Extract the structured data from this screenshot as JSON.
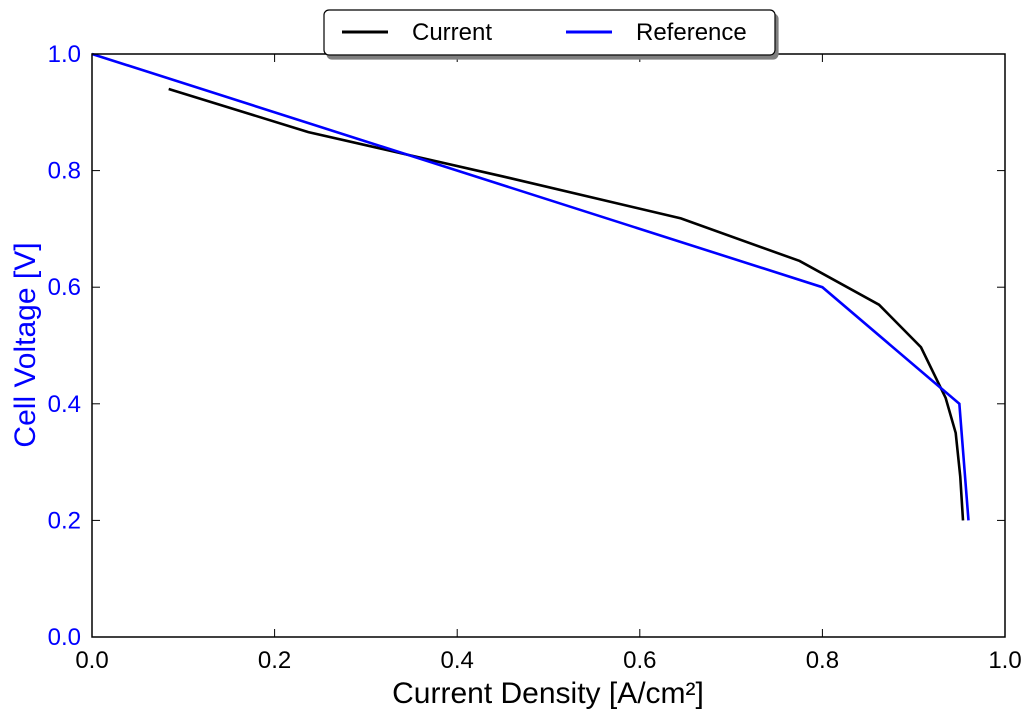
{
  "chart_data": {
    "type": "line",
    "title": "",
    "xlabel": "Current Density [A/cm²]",
    "ylabel": "Cell Voltage [V]",
    "xlim": [
      0.0,
      1.0
    ],
    "ylim": [
      0.0,
      1.0
    ],
    "x_ticks": [
      "0.0",
      "0.2",
      "0.4",
      "0.6",
      "0.8",
      "1.0"
    ],
    "y_ticks": [
      "0.0",
      "0.2",
      "0.4",
      "0.6",
      "0.8",
      "1.0"
    ],
    "grid": false,
    "legend_position": "top-center",
    "series": [
      {
        "name": "Current",
        "color": "#000000",
        "points": [
          [
            0.084,
            0.94
          ],
          [
            0.237,
            0.866
          ],
          [
            0.45,
            0.79
          ],
          [
            0.645,
            0.718
          ],
          [
            0.775,
            0.645
          ],
          [
            0.862,
            0.57
          ],
          [
            0.908,
            0.497
          ],
          [
            0.935,
            0.41
          ],
          [
            0.946,
            0.35
          ],
          [
            0.951,
            0.275
          ],
          [
            0.954,
            0.2
          ]
        ]
      },
      {
        "name": "Reference",
        "color": "#0000ff",
        "points": [
          [
            0.0,
            1.0
          ],
          [
            0.8,
            0.6
          ],
          [
            0.95,
            0.4
          ],
          [
            0.96,
            0.2
          ]
        ]
      }
    ]
  },
  "colors": {
    "axis": "#000000",
    "y_accent": "#0000ff"
  }
}
